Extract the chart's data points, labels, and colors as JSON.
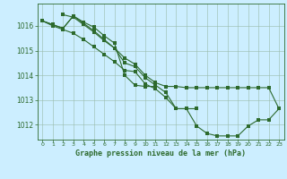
{
  "bg_color": "#cceeff",
  "grid_color": "#aaccaa",
  "line_color": "#2d6a2d",
  "xlabel": "Graphe pression niveau de la mer (hPa)",
  "xlim": [
    -0.5,
    23.5
  ],
  "ylim": [
    1011.4,
    1016.9
  ],
  "yticks": [
    1012,
    1013,
    1014,
    1015,
    1016
  ],
  "xticks": [
    0,
    1,
    2,
    3,
    4,
    5,
    6,
    7,
    8,
    9,
    10,
    11,
    12,
    13,
    14,
    15,
    16,
    17,
    18,
    19,
    20,
    21,
    22,
    23
  ],
  "s1_x": [
    0,
    1,
    2,
    3,
    4,
    5,
    6,
    7,
    8,
    9,
    10,
    11
  ],
  "s1_y": [
    1016.2,
    1016.05,
    1015.9,
    1016.4,
    1016.15,
    1015.95,
    1015.6,
    1015.3,
    1014.0,
    1013.6,
    1013.55,
    1013.55
  ],
  "s2_x": [
    0,
    1,
    2,
    3,
    4,
    5,
    6,
    7,
    8,
    9,
    10,
    11,
    12,
    13,
    14,
    15
  ],
  "s2_y": [
    1016.2,
    1016.05,
    1015.9,
    1016.4,
    1016.1,
    1015.8,
    1015.45,
    1015.1,
    1014.5,
    1014.35,
    1013.9,
    1013.6,
    1013.3,
    1012.65,
    1012.65,
    1012.65
  ],
  "s3_x": [
    2,
    3,
    4,
    5,
    6,
    7,
    8,
    9,
    10,
    11,
    12,
    13,
    14,
    15,
    16,
    17,
    18,
    19,
    20,
    21,
    22,
    23
  ],
  "s3_y": [
    1016.45,
    1016.35,
    1016.05,
    1015.75,
    1015.4,
    1015.1,
    1014.7,
    1014.45,
    1014.0,
    1013.7,
    1013.55,
    1013.55,
    1013.5,
    1013.5,
    1013.5,
    1013.5,
    1013.5,
    1013.5,
    1013.5,
    1013.5,
    1013.5,
    1012.65
  ],
  "s4_x": [
    0,
    1,
    2,
    3,
    4,
    5,
    6,
    7,
    8,
    9,
    10,
    11,
    12,
    13,
    14,
    15,
    16,
    17,
    18,
    19,
    20,
    21,
    22,
    23
  ],
  "s4_y": [
    1016.2,
    1016.0,
    1015.85,
    1015.7,
    1015.45,
    1015.15,
    1014.85,
    1014.55,
    1014.2,
    1014.15,
    1013.65,
    1013.45,
    1013.1,
    1012.65,
    1012.65,
    1011.95,
    1011.65,
    1011.55,
    1011.55,
    1011.55,
    1011.95,
    1012.2,
    1012.2,
    1012.65
  ]
}
